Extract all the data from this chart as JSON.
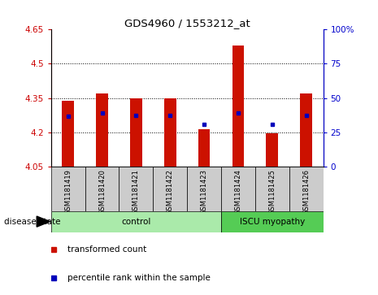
{
  "title": "GDS4960 / 1553212_at",
  "samples": [
    "GSM1181419",
    "GSM1181420",
    "GSM1181421",
    "GSM1181422",
    "GSM1181423",
    "GSM1181424",
    "GSM1181425",
    "GSM1181426"
  ],
  "bar_values": [
    4.34,
    4.37,
    4.35,
    4.35,
    4.215,
    4.58,
    4.195,
    4.37
  ],
  "bar_base": 4.05,
  "blue_dot_values": [
    4.27,
    4.285,
    4.275,
    4.275,
    4.235,
    4.285,
    4.235,
    4.275
  ],
  "ylim_left": [
    4.05,
    4.65
  ],
  "ylim_right": [
    0,
    100
  ],
  "yticks_left": [
    4.05,
    4.2,
    4.35,
    4.5,
    4.65
  ],
  "yticks_right": [
    0,
    25,
    50,
    75,
    100
  ],
  "ytick_labels_right": [
    "0",
    "25",
    "50",
    "75",
    "100%"
  ],
  "grid_values": [
    4.2,
    4.35,
    4.5
  ],
  "bar_color": "#cc1100",
  "dot_color": "#0000bb",
  "control_color": "#aaeaaa",
  "iscu_color": "#55cc55",
  "sample_box_color": "#cccccc",
  "legend_text_count": "transformed count",
  "legend_text_pct": "percentile rank within the sample",
  "disease_state_label": "disease state",
  "control_label": "control",
  "iscu_label": "ISCU myopathy",
  "left_axis_color": "#cc0000",
  "right_axis_color": "#0000cc"
}
